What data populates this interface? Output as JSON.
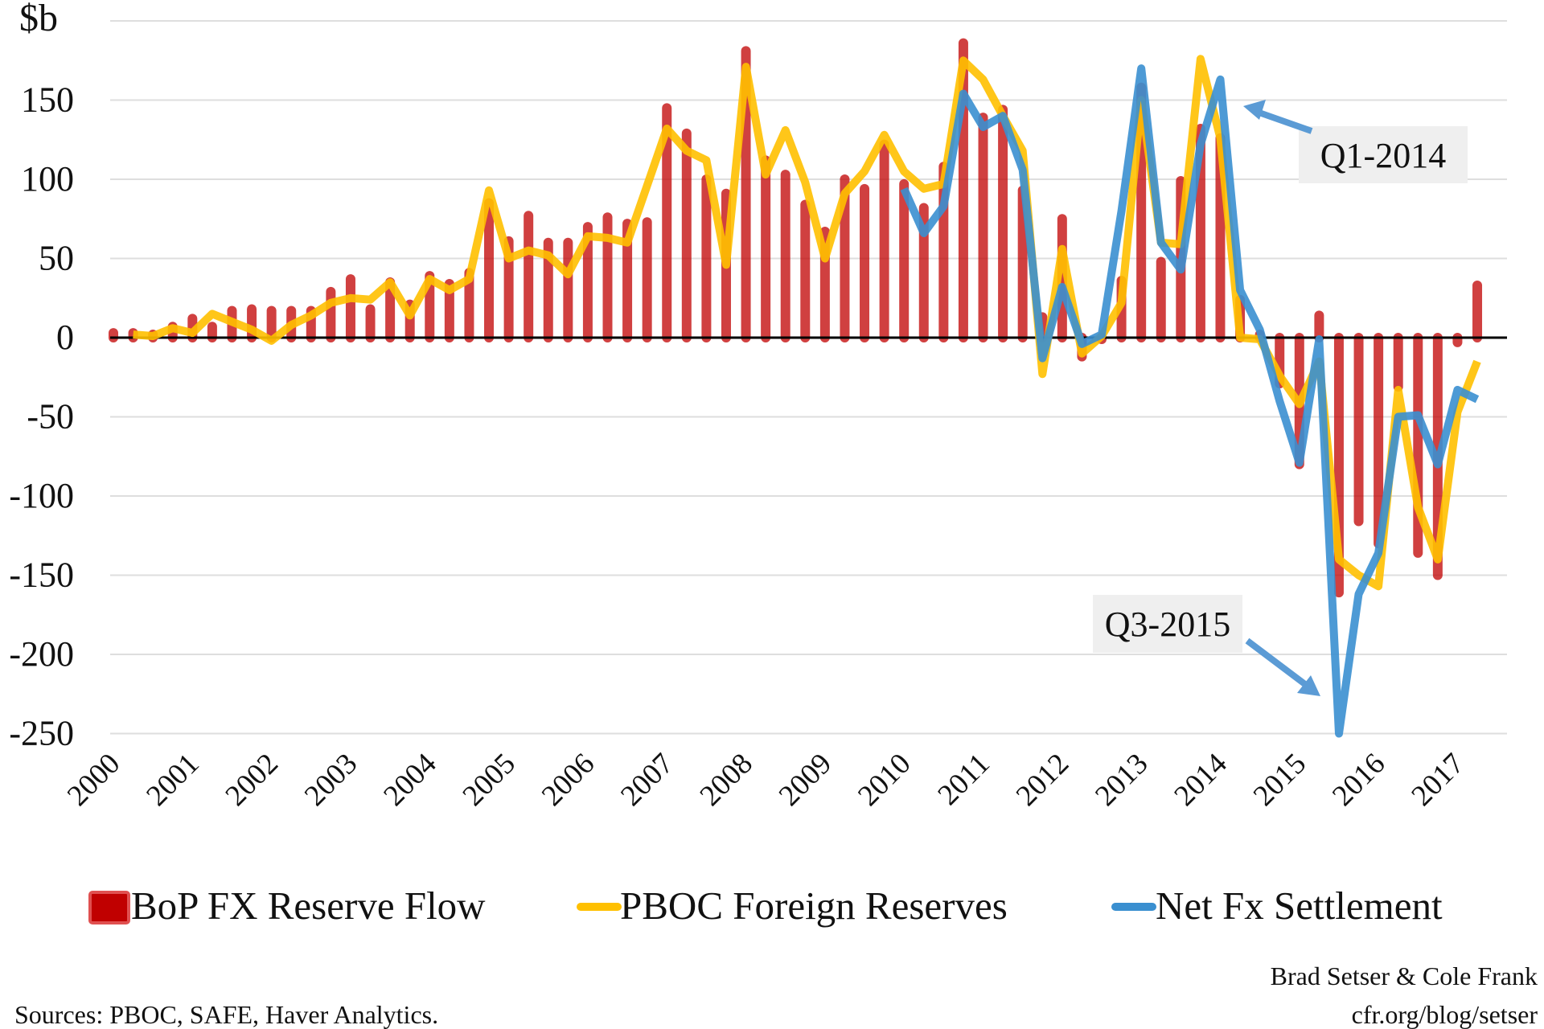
{
  "chart_data": {
    "type": "bar+line",
    "title": "",
    "ylabel": "$b",
    "xlabel": "",
    "ylim": [
      -250,
      200
    ],
    "yticks": [
      -250,
      -200,
      -150,
      -100,
      -50,
      0,
      50,
      100,
      150
    ],
    "ytick_labels": [
      "-250",
      "-200",
      "-150",
      "-100",
      "-50",
      "0",
      "50",
      "100",
      "150"
    ],
    "x_tick_labels": [
      "2000",
      "2001",
      "2002",
      "2003",
      "2004",
      "2005",
      "2006",
      "2007",
      "2008",
      "2009",
      "2010",
      "2011",
      "2012",
      "2013",
      "2014",
      "2015",
      "2016",
      "2017"
    ],
    "x_unit": "quarter (2000 Q1 – 2017 Q2)",
    "grid": true,
    "legend_position": "bottom",
    "series": [
      {
        "name": "BoP FX Reserve Flow",
        "type": "bar",
        "color": "#c00000",
        "values": [
          3,
          3,
          2,
          7,
          12,
          7,
          17,
          18,
          17,
          17,
          17,
          29,
          37,
          18,
          35,
          21,
          39,
          34,
          41,
          85,
          61,
          77,
          60,
          60,
          70,
          76,
          72,
          73,
          145,
          129,
          100,
          91,
          181,
          112,
          103,
          84,
          67,
          100,
          94,
          122,
          97,
          82,
          108,
          186,
          139,
          144,
          93,
          13,
          75,
          -12,
          -1,
          36,
          158,
          48,
          99,
          132,
          126,
          24,
          2,
          -29,
          -80,
          14,
          -161,
          -116,
          -130,
          -31,
          -136,
          -150,
          -3,
          33
        ]
      },
      {
        "name": "PBOC Foreign Reserves",
        "type": "line",
        "color": "#ffc000",
        "values": [
          null,
          2,
          1,
          6,
          3,
          15,
          10,
          5,
          -2,
          8,
          14,
          22,
          25,
          24,
          35,
          14,
          37,
          30,
          37,
          93,
          50,
          55,
          52,
          40,
          64,
          63,
          60,
          96,
          132,
          118,
          112,
          46,
          171,
          103,
          131,
          98,
          50,
          91,
          105,
          128,
          105,
          94,
          97,
          175,
          163,
          140,
          118,
          -23,
          56,
          -10,
          1,
          22,
          150,
          60,
          59,
          176,
          126,
          0,
          -1,
          -24,
          -42,
          -15,
          -140,
          -150,
          -157,
          -33,
          -107,
          -140,
          -47,
          -15
        ]
      },
      {
        "name": "Net Fx Settlement",
        "type": "line",
        "color": "#3a8fd0",
        "values": [
          null,
          null,
          null,
          null,
          null,
          null,
          null,
          null,
          null,
          null,
          null,
          null,
          null,
          null,
          null,
          null,
          null,
          null,
          null,
          null,
          null,
          null,
          null,
          null,
          null,
          null,
          null,
          null,
          null,
          null,
          null,
          null,
          null,
          null,
          null,
          null,
          null,
          null,
          null,
          null,
          94,
          66,
          83,
          154,
          133,
          140,
          106,
          -13,
          32,
          -4,
          2,
          80,
          170,
          60,
          43,
          122,
          163,
          30,
          5,
          -40,
          -79,
          -1,
          -250,
          -162,
          -136,
          -50,
          -49,
          -80,
          -33,
          -39
        ]
      }
    ],
    "annotations": [
      {
        "text": "Q1-2014",
        "target_quarter": "2014 Q1"
      },
      {
        "text": "Q3-2015",
        "target_quarter": "2015 Q3"
      }
    ]
  },
  "footer": {
    "sources": "Sources: PBOC, SAFE, Haver Analytics.",
    "authors": "Brad Setser & Cole Frank",
    "url": "cfr.org/blog/setser"
  }
}
